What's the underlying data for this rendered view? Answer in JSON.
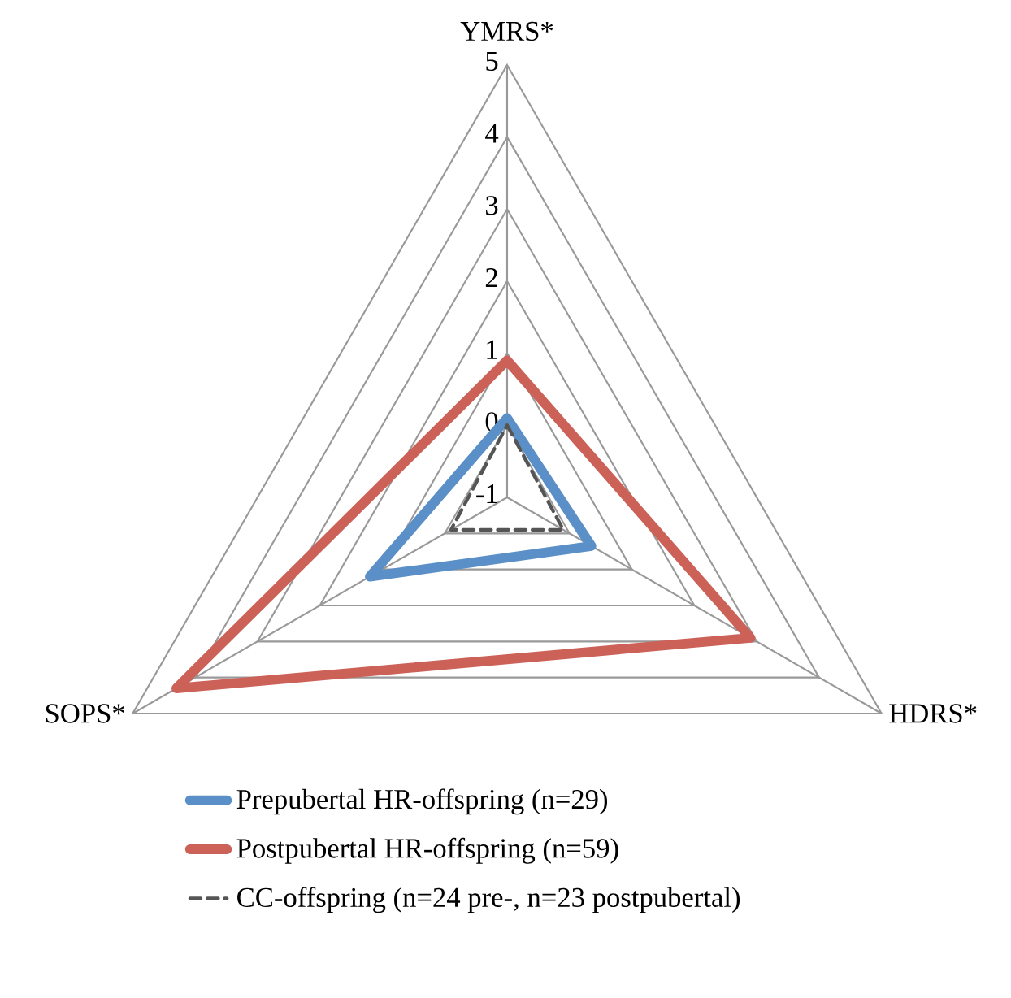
{
  "chart_data": {
    "type": "radar",
    "categories": [
      "YMRS*",
      "HDRS*",
      "SOPS*"
    ],
    "ylim": [
      -1,
      5
    ],
    "yticks": [
      -1,
      0,
      1,
      2,
      3,
      4,
      5
    ],
    "grid": true,
    "legend": "bottom",
    "marker": "none",
    "series": [
      {
        "name": "Prepubertal HR-offspring (n=29)",
        "color": "#5b8fc7",
        "values": [
          0.1,
          0.35,
          1.2
        ]
      },
      {
        "name": "Postpubertal HR-offspring (n=59)",
        "color": "#cc6158",
        "values": [
          0.9,
          2.9,
          4.3
        ]
      },
      {
        "name": "CC-offspring (n=24 pre-, n=23 postpubertal)",
        "color": "#555555",
        "line_style": "dashed",
        "values": [
          0.0,
          -0.1,
          -0.1
        ]
      }
    ]
  }
}
